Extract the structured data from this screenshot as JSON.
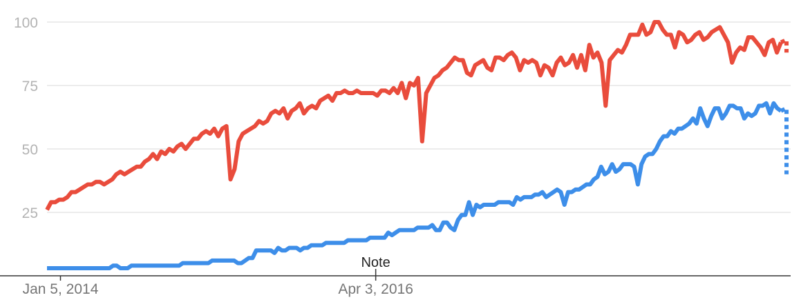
{
  "chart_data": {
    "type": "line",
    "title": "",
    "xlabel": "",
    "ylabel": "",
    "ylim": [
      0,
      100
    ],
    "y_ticks": [
      "25",
      "50",
      "75",
      "100"
    ],
    "x_tick_labels": [
      "Jan 5, 2014",
      "Apr 3, 2016"
    ],
    "x_tick_dates": [
      "2014-01-05",
      "2016-04-03"
    ],
    "x_range": [
      "2013-12-01",
      "2019-03-17"
    ],
    "grid": true,
    "annotation": {
      "text": "Note",
      "date": "2016-04-03"
    },
    "colors": {
      "series_a": "#e94c3c",
      "series_b": "#3d8ee9",
      "grid": "#e6e6e6",
      "axis": "#333333",
      "tick_text": "#b3b3b3"
    },
    "series": [
      {
        "color": "#e94c3c",
        "dotted_tail": [
          88,
          93
        ],
        "values": [
          26,
          29,
          29,
          30,
          30,
          31,
          33,
          33,
          34,
          35,
          36,
          36,
          37,
          37,
          36,
          37,
          38,
          40,
          41,
          40,
          41,
          42,
          43,
          43,
          45,
          46,
          48,
          46,
          49,
          48,
          50,
          49,
          51,
          52,
          50,
          52,
          54,
          54,
          56,
          57,
          56,
          58,
          55,
          58,
          59,
          38,
          42,
          53,
          56,
          57,
          58,
          59,
          61,
          60,
          61,
          64,
          65,
          64,
          66,
          62,
          65,
          66,
          68,
          64,
          66,
          67,
          66,
          69,
          70,
          71,
          69,
          72,
          72,
          73,
          72,
          72,
          73,
          72,
          72,
          72,
          72,
          71,
          73,
          73,
          72,
          74,
          72,
          76,
          70,
          76,
          75,
          78,
          53,
          72,
          75,
          78,
          79,
          81,
          82,
          84,
          86,
          85,
          85,
          80,
          79,
          83,
          84,
          85,
          82,
          81,
          86,
          86,
          85,
          87,
          88,
          86,
          81,
          85,
          84,
          85,
          84,
          79,
          83,
          82,
          79,
          84,
          86,
          83,
          84,
          87,
          82,
          87,
          81,
          91,
          86,
          88,
          84,
          67,
          85,
          87,
          89,
          88,
          91,
          95,
          95,
          95,
          99,
          95,
          96,
          100,
          100,
          97,
          95,
          95,
          90,
          96,
          95,
          92,
          93,
          95,
          96,
          93,
          94,
          96,
          97,
          98,
          95,
          92,
          84,
          88,
          90,
          89,
          94,
          94,
          92,
          90,
          87,
          92,
          93,
          88,
          92
        ]
      },
      {
        "color": "#3d8ee9",
        "dotted_tail": [
          40,
          66
        ],
        "values": [
          3,
          3,
          3,
          3,
          3,
          3,
          3,
          3,
          3,
          3,
          3,
          3,
          3,
          3,
          3,
          3,
          3,
          3,
          4,
          4,
          3,
          3,
          3,
          4,
          4,
          4,
          4,
          4,
          4,
          4,
          4,
          4,
          4,
          4,
          4,
          4,
          4,
          5,
          5,
          5,
          5,
          5,
          5,
          5,
          5,
          6,
          6,
          6,
          6,
          6,
          6,
          6,
          5,
          5,
          6,
          7,
          7,
          10,
          10,
          10,
          10,
          10,
          9,
          11,
          10,
          10,
          11,
          11,
          11,
          10,
          11,
          11,
          12,
          12,
          12,
          12,
          13,
          13,
          13,
          13,
          13,
          13,
          14,
          14,
          14,
          14,
          14,
          14,
          15,
          15,
          15,
          15,
          15,
          17,
          16,
          17,
          18,
          18,
          18,
          18,
          18,
          19,
          19,
          19,
          19,
          20,
          18,
          18,
          21,
          21,
          19,
          18,
          22,
          24,
          24,
          29,
          24,
          28,
          27,
          28,
          28,
          28,
          28,
          29,
          29,
          29,
          29,
          28,
          31,
          30,
          31,
          31,
          31,
          32,
          32,
          33,
          31,
          32,
          33,
          34,
          33,
          28,
          33,
          33,
          34,
          34,
          35,
          36,
          36,
          38,
          39,
          43,
          40,
          41,
          44,
          41,
          42,
          44,
          44,
          44,
          43,
          36,
          44,
          47,
          48,
          48,
          50,
          53,
          55,
          55,
          57,
          56,
          58,
          58,
          59,
          60,
          62,
          60,
          66,
          62,
          59,
          63,
          66,
          66,
          62,
          64,
          67,
          67,
          66,
          66,
          62,
          64,
          63,
          64,
          67,
          67,
          68,
          64,
          68,
          66,
          65
        ]
      }
    ]
  }
}
